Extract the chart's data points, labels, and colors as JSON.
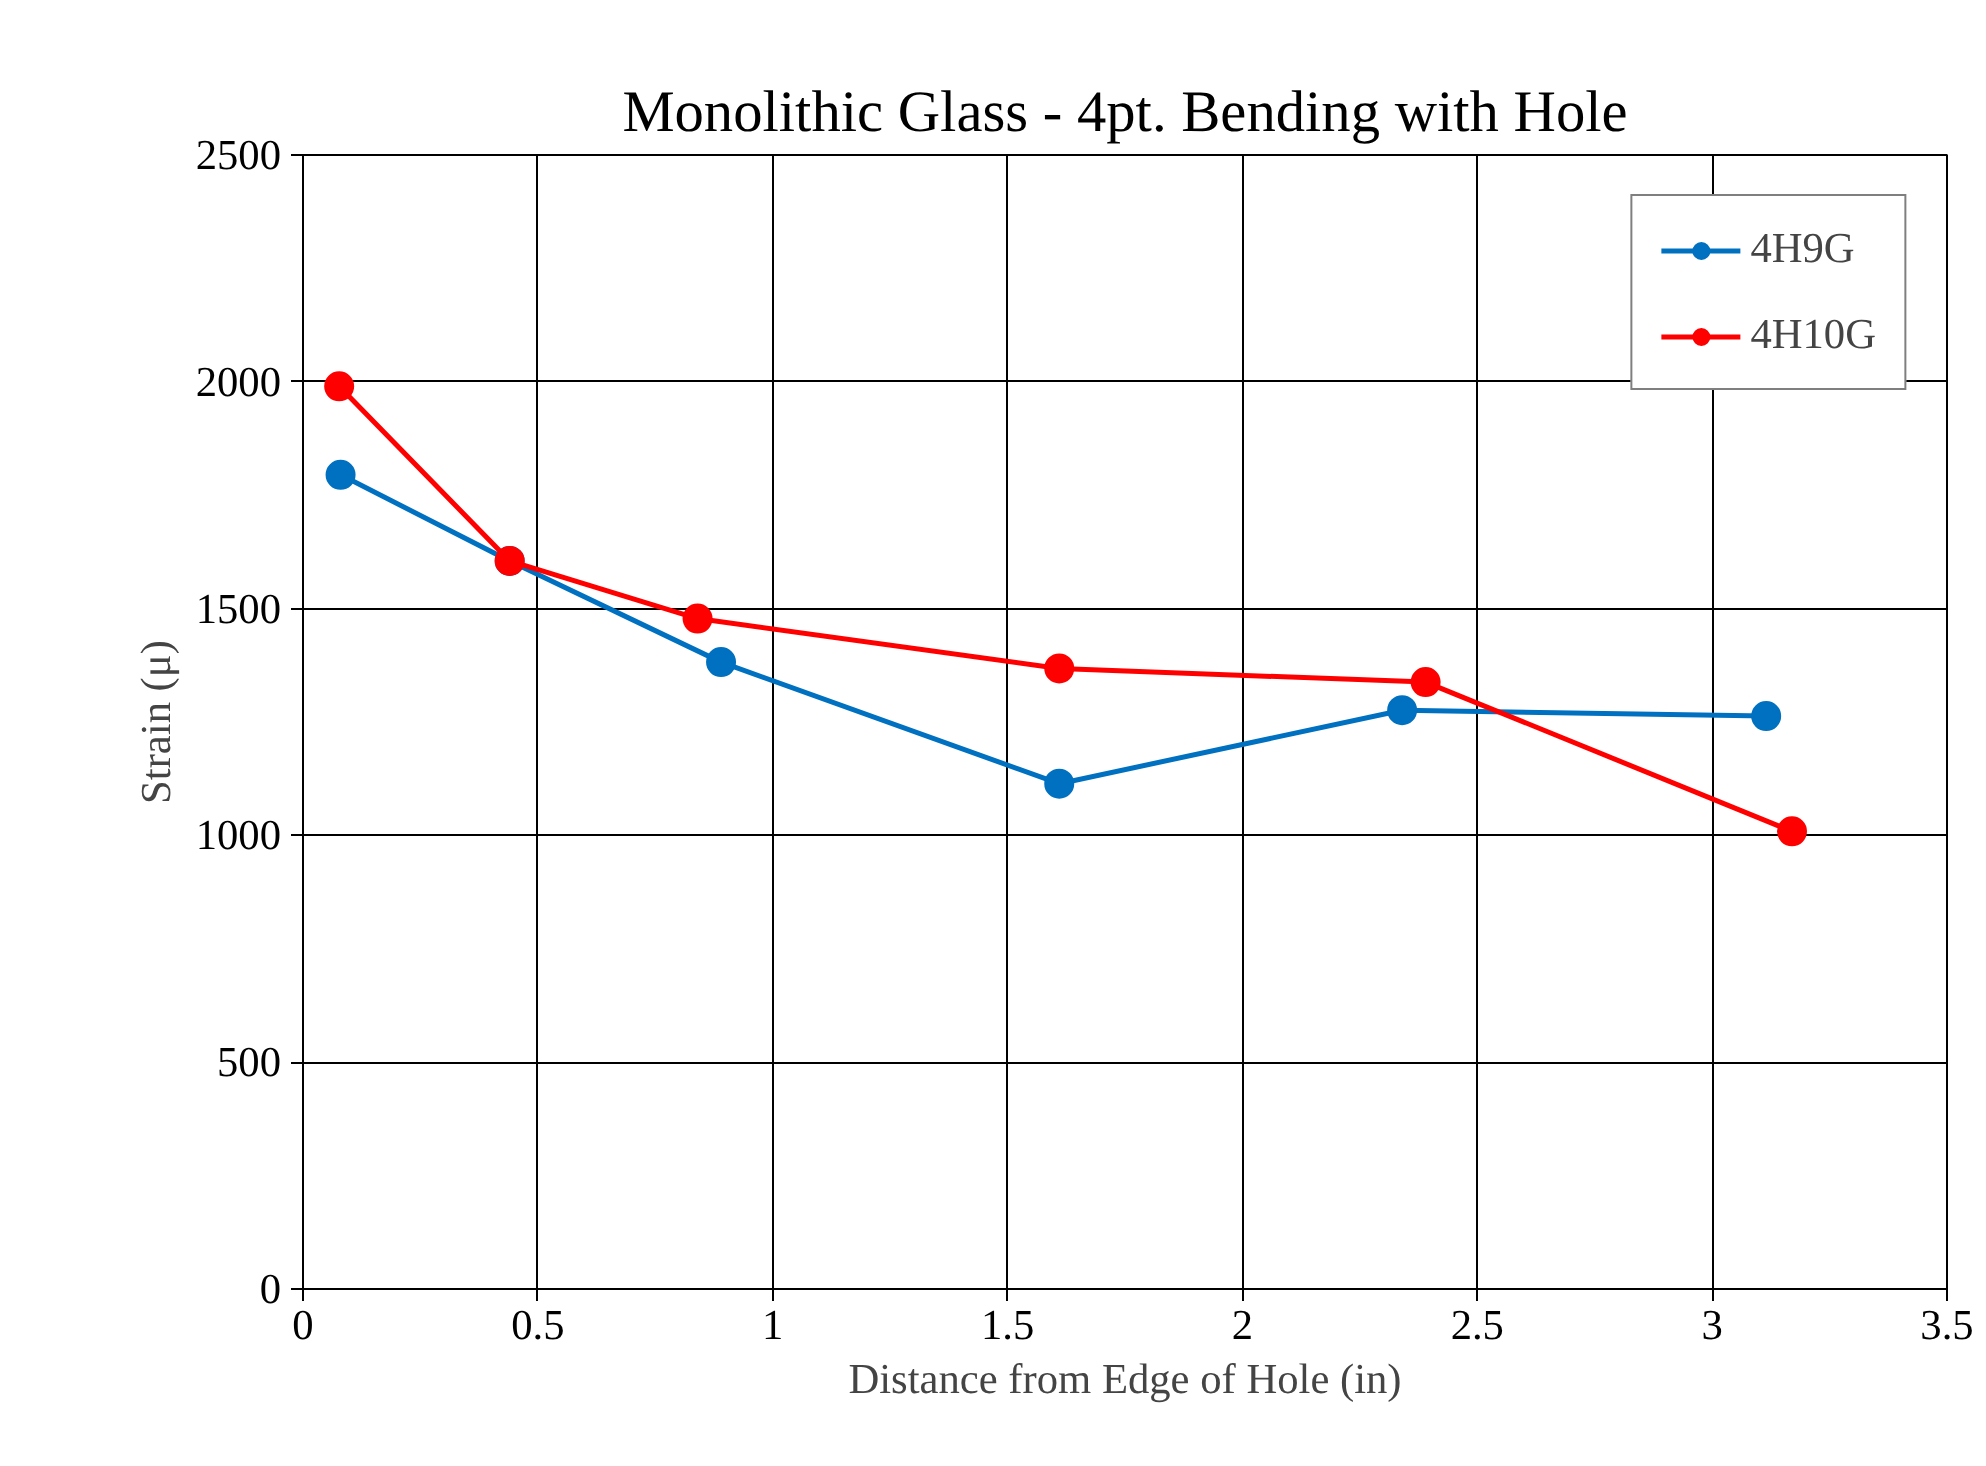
{
  "chart_data": {
    "type": "line",
    "title": "Monolithic Glass - 4pt. Bending with Hole",
    "xlabel": "Distance from Edge of Hole (in)",
    "ylabel": "Strain (μ)",
    "xlim": [
      0,
      3.5
    ],
    "xticks": [
      0,
      0.5,
      1,
      1.5,
      2,
      2.5,
      3,
      3.5
    ],
    "ylim": [
      0,
      2500
    ],
    "yticks": [
      0,
      500,
      1000,
      1500,
      2000,
      2500
    ],
    "grid": true,
    "legend": "top right",
    "marker": "circle",
    "line_style": "solid",
    "series": [
      {
        "name": "4H9G",
        "color": "#0070c0",
        "x": [
          0.08,
          0.44,
          0.89,
          1.61,
          2.34,
          3.115
        ],
        "values": [
          1795,
          1605,
          1382,
          1114,
          1276,
          1263
        ]
      },
      {
        "name": "4H10G",
        "color": "#ff0000",
        "x": [
          0.077,
          0.44,
          0.84,
          1.61,
          2.39,
          3.17
        ],
        "values": [
          1990,
          1605,
          1478,
          1368,
          1338,
          1009
        ]
      }
    ]
  }
}
